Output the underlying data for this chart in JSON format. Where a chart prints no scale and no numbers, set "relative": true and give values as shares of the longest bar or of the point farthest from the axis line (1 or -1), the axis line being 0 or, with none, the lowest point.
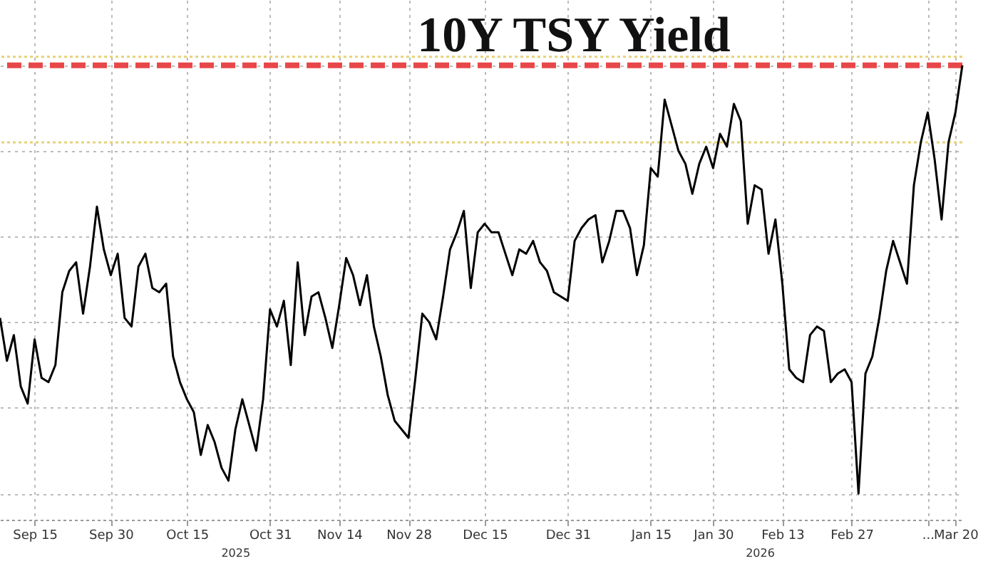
{
  "chart_data": {
    "type": "line",
    "title": "10Y TSY Yield",
    "relative": true,
    "grid": true,
    "categories": [
      null,
      null,
      null,
      null,
      null,
      "Sep 15",
      null,
      null,
      null,
      null,
      null,
      null,
      null,
      null,
      null,
      null,
      "Sep 30",
      null,
      null,
      null,
      null,
      null,
      null,
      null,
      null,
      null,
      null,
      "Oct 15",
      null,
      null,
      null,
      null,
      null,
      null,
      null,
      null,
      null,
      null,
      null,
      "Oct 31",
      null,
      null,
      null,
      null,
      null,
      null,
      null,
      null,
      null,
      "Nov 14",
      null,
      null,
      null,
      null,
      null,
      null,
      null,
      null,
      null,
      "Nov 28",
      null,
      null,
      null,
      null,
      null,
      null,
      null,
      null,
      null,
      null,
      "Dec 15",
      null,
      null,
      null,
      null,
      null,
      null,
      null,
      null,
      null,
      null,
      null,
      "Dec 31",
      null,
      null,
      null,
      null,
      null,
      null,
      null,
      null,
      null,
      null,
      null,
      "Jan 15",
      null,
      null,
      null,
      null,
      null,
      null,
      null,
      null,
      "Jan 30",
      null,
      null,
      null,
      null,
      null,
      null,
      null,
      null,
      null,
      "Feb 13",
      null,
      null,
      null,
      null,
      null,
      null,
      null,
      null,
      null,
      "Feb 27",
      null,
      null,
      null,
      null,
      null,
      null,
      null,
      null,
      null,
      null,
      "...",
      null,
      null,
      null,
      "Mar 20",
      null
    ],
    "series": [
      {
        "color": "#000000",
        "values": [
          0.41,
          0.31,
          0.37,
          0.25,
          0.21,
          0.36,
          0.27,
          0.26,
          0.3,
          0.47,
          0.52,
          0.54,
          0.42,
          0.53,
          0.67,
          0.57,
          0.51,
          0.56,
          0.41,
          0.39,
          0.53,
          0.56,
          0.48,
          0.47,
          0.49,
          0.32,
          0.26,
          0.22,
          0.19,
          0.09,
          0.16,
          0.12,
          0.06,
          0.03,
          0.15,
          0.22,
          0.16,
          0.1,
          0.22,
          0.43,
          0.39,
          0.45,
          0.3,
          0.54,
          0.37,
          0.46,
          0.47,
          0.41,
          0.34,
          0.44,
          0.55,
          0.51,
          0.44,
          0.51,
          0.39,
          0.32,
          0.23,
          0.17,
          0.15,
          0.13,
          0.27,
          0.42,
          0.4,
          0.36,
          0.46,
          0.57,
          0.61,
          0.66,
          0.48,
          0.61,
          0.63,
          0.61,
          0.61,
          0.56,
          0.51,
          0.57,
          0.56,
          0.59,
          0.54,
          0.52,
          0.47,
          0.46,
          0.45,
          0.59,
          0.62,
          0.64,
          0.65,
          0.54,
          0.59,
          0.66,
          0.66,
          0.62,
          0.51,
          0.58,
          0.76,
          0.74,
          0.92,
          0.86,
          0.8,
          0.77,
          0.7,
          0.77,
          0.81,
          0.76,
          0.84,
          0.81,
          0.91,
          0.87,
          0.63,
          0.72,
          0.71,
          0.56,
          0.64,
          0.49,
          0.29,
          0.27,
          0.26,
          0.37,
          0.39,
          0.38,
          0.26,
          0.28,
          0.29,
          0.26,
          0,
          0.28,
          0.32,
          0.41,
          0.52,
          0.59,
          0.54,
          0.49,
          0.72,
          0.82,
          0.89,
          0.78,
          0.64,
          0.82,
          0.89,
          1
        ]
      }
    ],
    "ref_lines": [
      {
        "axis": "y",
        "value": 1.02,
        "color": "#e6d27a",
        "line_style": "dotted"
      },
      {
        "axis": "y",
        "value": 1,
        "color": "#e8474a",
        "line_style": "dashed"
      },
      {
        "axis": "y",
        "value": 0.82,
        "color": "#e6d27a",
        "line_style": "dotted"
      }
    ],
    "annotations": [
      "2025",
      "2026"
    ]
  }
}
